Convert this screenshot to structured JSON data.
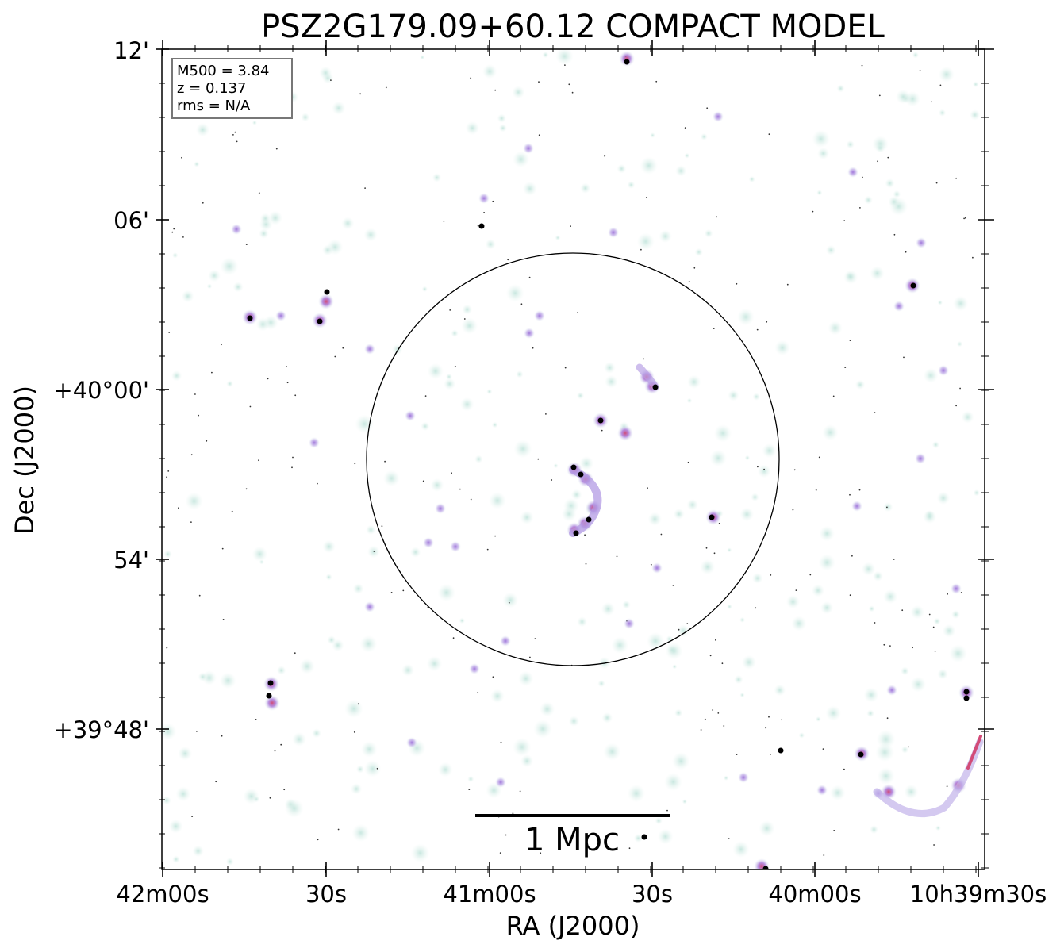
{
  "title": "PSZ2G179.09+60.12 COMPACT MODEL",
  "info_box": {
    "lines": [
      "M500 = 3.84",
      "z = 0.137",
      "rms = N/A"
    ]
  },
  "axes": {
    "xlabel": "RA (J2000)",
    "ylabel": "Dec (J2000)",
    "x_ticks": [
      "42m00s",
      "30s",
      "41m00s",
      "30s",
      "40m00s",
      "10h39m30s"
    ],
    "y_ticks": [
      "12'",
      "06'",
      "+40°00'",
      "54'",
      "+39°48'"
    ]
  },
  "scale_bar": {
    "label": "1 Mpc"
  },
  "colors": {
    "frame": "#000000",
    "faint_emission": "#cfe8e2",
    "mid_emission": "#b9a3e6",
    "bright_emission": "#d24b77",
    "core_emission": "#000000"
  }
}
